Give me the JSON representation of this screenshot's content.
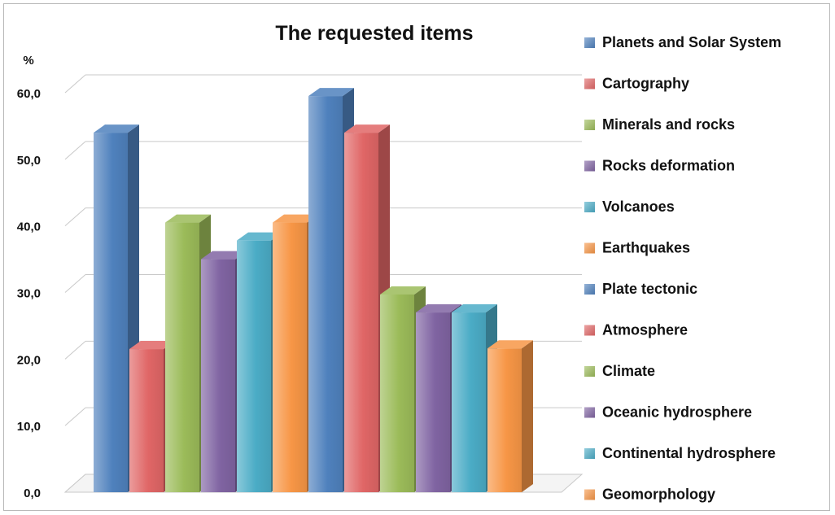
{
  "chart_data": {
    "type": "bar",
    "title": "The requested items",
    "ylabel": "%",
    "xlabel": "",
    "ylim": [
      0,
      60
    ],
    "yticks": [
      "0,0",
      "10,0",
      "20,0",
      "30,0",
      "40,0",
      "50,0",
      "60,0"
    ],
    "grid": true,
    "legend_position": "right",
    "series": [
      {
        "name": "Planets and Solar System",
        "value": 54.0,
        "color": "#4f81bd"
      },
      {
        "name": "Cartography",
        "value": 21.5,
        "color": "#e06666"
      },
      {
        "name": "Minerals and rocks",
        "value": 40.5,
        "color": "#9bbb59"
      },
      {
        "name": "Rocks deformation",
        "value": 35.0,
        "color": "#8064a2"
      },
      {
        "name": "Volcanoes",
        "value": 37.8,
        "color": "#4bacc6"
      },
      {
        "name": "Earthquakes",
        "value": 40.5,
        "color": "#f79646"
      },
      {
        "name": "Plate tectonic",
        "value": 59.5,
        "color": "#4f81bd"
      },
      {
        "name": "Atmosphere",
        "value": 54.0,
        "color": "#e06666"
      },
      {
        "name": "Climate",
        "value": 29.7,
        "color": "#9bbb59"
      },
      {
        "name": "Oceanic hydrosphere",
        "value": 27.0,
        "color": "#8064a2"
      },
      {
        "name": "Continental hydrosphere",
        "value": 27.0,
        "color": "#4bacc6"
      },
      {
        "name": "Geomorphology",
        "value": 21.6,
        "color": "#f79646"
      }
    ]
  }
}
